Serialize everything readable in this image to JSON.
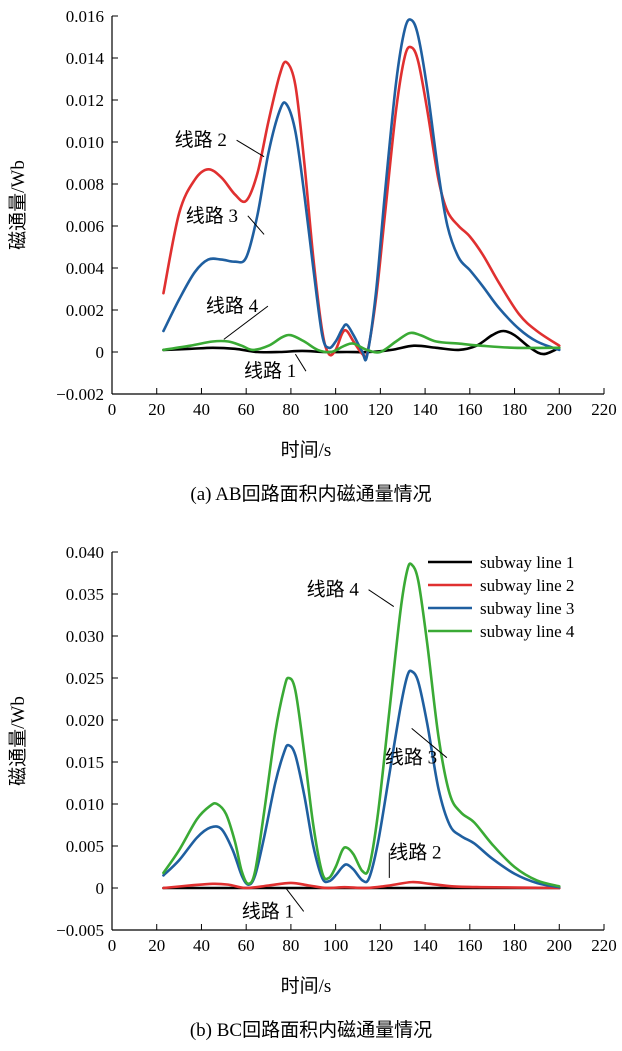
{
  "chart_data": [
    {
      "type": "line",
      "caption": "(a) AB回路面积内磁通量情况",
      "xlabel": "时间/s",
      "ylabel": "磁通量/Wb",
      "xlim": [
        0,
        220
      ],
      "ylim": [
        -0.002,
        0.016
      ],
      "xticks": [
        0,
        20,
        40,
        60,
        80,
        100,
        120,
        140,
        160,
        180,
        200,
        220
      ],
      "yticks": [
        -0.002,
        0,
        0.002,
        0.004,
        0.006,
        0.008,
        0.01,
        0.012,
        0.014,
        0.016
      ],
      "ytick_labels": [
        "−0.002",
        "0",
        "0.002",
        "0.004",
        "0.006",
        "0.008",
        "0.010",
        "0.012",
        "0.014",
        "0.016"
      ],
      "series": [
        {
          "name": "线路 1",
          "color": "#000000",
          "points": [
            [
              23,
              0.0001
            ],
            [
              35,
              0.00015
            ],
            [
              45,
              0.0002
            ],
            [
              55,
              0.00015
            ],
            [
              65,
              0.0
            ],
            [
              75,
              0.0
            ],
            [
              85,
              5e-05
            ],
            [
              95,
              0.0
            ],
            [
              105,
              0.0
            ],
            [
              115,
              0.0
            ],
            [
              125,
              0.0001
            ],
            [
              135,
              0.0003
            ],
            [
              145,
              0.0002
            ],
            [
              155,
              0.0001
            ],
            [
              163,
              0.0003
            ],
            [
              170,
              0.0008
            ],
            [
              175,
              0.001
            ],
            [
              180,
              0.0008
            ],
            [
              187,
              0.0002
            ],
            [
              193,
              -0.0001
            ],
            [
              200,
              0.0002
            ]
          ]
        },
        {
          "name": "线路 2",
          "color": "#e03030",
          "points": [
            [
              23,
              0.0028
            ],
            [
              30,
              0.0066
            ],
            [
              37,
              0.0082
            ],
            [
              43,
              0.0087
            ],
            [
              49,
              0.0083
            ],
            [
              55,
              0.0075
            ],
            [
              60,
              0.0072
            ],
            [
              65,
              0.0085
            ],
            [
              70,
              0.011
            ],
            [
              75,
              0.0132
            ],
            [
              78,
              0.0138
            ],
            [
              82,
              0.0127
            ],
            [
              86,
              0.009
            ],
            [
              90,
              0.0045
            ],
            [
              94,
              0.001
            ],
            [
              97,
              -0.0001
            ],
            [
              100,
              0.0001
            ],
            [
              103,
              0.0009
            ],
            [
              105,
              0.001
            ],
            [
              108,
              0.0005
            ],
            [
              112,
              -0.0001
            ],
            [
              114,
              -0.0001
            ],
            [
              118,
              0.0025
            ],
            [
              122,
              0.0065
            ],
            [
              127,
              0.0115
            ],
            [
              131,
              0.0141
            ],
            [
              134,
              0.0145
            ],
            [
              137,
              0.0138
            ],
            [
              141,
              0.0115
            ],
            [
              146,
              0.0082
            ],
            [
              150,
              0.0067
            ],
            [
              155,
              0.006
            ],
            [
              160,
              0.0055
            ],
            [
              166,
              0.0046
            ],
            [
              173,
              0.0033
            ],
            [
              182,
              0.0018
            ],
            [
              190,
              0.001
            ],
            [
              200,
              0.0003
            ]
          ]
        },
        {
          "name": "线路 3",
          "color": "#1f5fa0",
          "points": [
            [
              23,
              0.001
            ],
            [
              30,
              0.0025
            ],
            [
              37,
              0.0038
            ],
            [
              43,
              0.0044
            ],
            [
              49,
              0.0044
            ],
            [
              55,
              0.0043
            ],
            [
              60,
              0.0045
            ],
            [
              65,
              0.0065
            ],
            [
              70,
              0.0095
            ],
            [
              75,
              0.0115
            ],
            [
              78,
              0.0118
            ],
            [
              82,
              0.0105
            ],
            [
              86,
              0.0075
            ],
            [
              90,
              0.004
            ],
            [
              94,
              0.0008
            ],
            [
              97,
              0.0002
            ],
            [
              100,
              0.0005
            ],
            [
              103,
              0.0011
            ],
            [
              105,
              0.0013
            ],
            [
              108,
              0.0008
            ],
            [
              112,
              0.0
            ],
            [
              114,
              -0.0002
            ],
            [
              118,
              0.0028
            ],
            [
              122,
              0.0075
            ],
            [
              127,
              0.0128
            ],
            [
              131,
              0.0154
            ],
            [
              134,
              0.0158
            ],
            [
              137,
              0.015
            ],
            [
              141,
              0.0125
            ],
            [
              146,
              0.0085
            ],
            [
              150,
              0.006
            ],
            [
              155,
              0.0045
            ],
            [
              160,
              0.0039
            ],
            [
              166,
              0.0031
            ],
            [
              173,
              0.0021
            ],
            [
              182,
              0.0011
            ],
            [
              190,
              0.0005
            ],
            [
              200,
              0.0001
            ]
          ]
        },
        {
          "name": "线路 4",
          "color": "#3aaa35",
          "points": [
            [
              23,
              0.0001
            ],
            [
              35,
              0.0003
            ],
            [
              45,
              0.0005
            ],
            [
              52,
              0.0005
            ],
            [
              58,
              0.0003
            ],
            [
              63,
              0.0001
            ],
            [
              70,
              0.0003
            ],
            [
              76,
              0.0007
            ],
            [
              80,
              0.0008
            ],
            [
              86,
              0.0005
            ],
            [
              92,
              0.0001
            ],
            [
              98,
              0.0
            ],
            [
              104,
              0.0003
            ],
            [
              108,
              0.0004
            ],
            [
              114,
              0.0001
            ],
            [
              120,
              0.0
            ],
            [
              127,
              0.0005
            ],
            [
              133,
              0.0009
            ],
            [
              138,
              0.0008
            ],
            [
              145,
              0.0005
            ],
            [
              155,
              0.0004
            ],
            [
              165,
              0.0003
            ],
            [
              180,
              0.0002
            ],
            [
              200,
              0.0002
            ]
          ]
        }
      ],
      "annotations": [
        {
          "text": "线路 2",
          "x": 28,
          "y": 0.0098,
          "tx": 68,
          "ty": 0.0093,
          "series": "线路 2"
        },
        {
          "text": "线路 3",
          "x": 33,
          "y": 0.0062,
          "tx": 68,
          "ty": 0.0056,
          "series": "线路 3"
        },
        {
          "text": "线路 4",
          "x": 42,
          "y": 0.0019,
          "tx": 50,
          "ty": 0.0006,
          "series": "线路 4"
        },
        {
          "text": "线路 1",
          "x": 59,
          "y": -0.0012,
          "tx": 82,
          "ty": -0.0001,
          "series": "线路 1"
        }
      ]
    },
    {
      "type": "line",
      "caption": "(b) BC回路面积内磁通量情况",
      "xlabel": "时间/s",
      "ylabel": "磁通量/Wb",
      "xlim": [
        0,
        220
      ],
      "ylim": [
        -0.005,
        0.04
      ],
      "xticks": [
        0,
        20,
        40,
        60,
        80,
        100,
        120,
        140,
        160,
        180,
        200,
        220
      ],
      "yticks": [
        -0.005,
        0,
        0.005,
        0.01,
        0.015,
        0.02,
        0.025,
        0.03,
        0.035,
        0.04
      ],
      "ytick_labels": [
        "−0.005",
        "0",
        "0.005",
        "0.010",
        "0.015",
        "0.020",
        "0.025",
        "0.030",
        "0.035",
        "0.040"
      ],
      "legend": {
        "position": "top-right",
        "entries": [
          "subway line 1",
          "subway line 2",
          "subway line 3",
          "subway line 4"
        ]
      },
      "series": [
        {
          "name": "subway line 1",
          "color": "#000000",
          "points": [
            [
              23,
              0.0
            ],
            [
              60,
              0.0
            ],
            [
              100,
              0.0
            ],
            [
              140,
              0.0
            ],
            [
              200,
              0.0
            ]
          ]
        },
        {
          "name": "subway line 2",
          "color": "#e03030",
          "points": [
            [
              23,
              0.0
            ],
            [
              35,
              0.0003
            ],
            [
              45,
              0.0005
            ],
            [
              52,
              0.0004
            ],
            [
              60,
              0.0
            ],
            [
              70,
              0.0003
            ],
            [
              80,
              0.0006
            ],
            [
              88,
              0.0003
            ],
            [
              96,
              0.0
            ],
            [
              104,
              0.0001
            ],
            [
              114,
              0.0
            ],
            [
              124,
              0.0003
            ],
            [
              134,
              0.0007
            ],
            [
              142,
              0.0005
            ],
            [
              152,
              0.0002
            ],
            [
              165,
              0.0001
            ],
            [
              200,
              0.0
            ]
          ]
        },
        {
          "name": "subway line 3",
          "color": "#1f5fa0",
          "points": [
            [
              23,
              0.0015
            ],
            [
              30,
              0.0033
            ],
            [
              38,
              0.006
            ],
            [
              44,
              0.0072
            ],
            [
              49,
              0.007
            ],
            [
              54,
              0.0045
            ],
            [
              58,
              0.0015
            ],
            [
              61,
              0.0004
            ],
            [
              64,
              0.0015
            ],
            [
              68,
              0.006
            ],
            [
              73,
              0.0125
            ],
            [
              77,
              0.0162
            ],
            [
              79,
              0.017
            ],
            [
              82,
              0.0158
            ],
            [
              86,
              0.011
            ],
            [
              90,
              0.005
            ],
            [
              94,
              0.0012
            ],
            [
              97,
              0.0008
            ],
            [
              100,
              0.0015
            ],
            [
              103,
              0.0025
            ],
            [
              105,
              0.0028
            ],
            [
              108,
              0.0022
            ],
            [
              112,
              0.0009
            ],
            [
              115,
              0.0012
            ],
            [
              119,
              0.0055
            ],
            [
              124,
              0.0135
            ],
            [
              129,
              0.0215
            ],
            [
              132,
              0.0252
            ],
            [
              134,
              0.0258
            ],
            [
              137,
              0.0245
            ],
            [
              141,
              0.0195
            ],
            [
              146,
              0.0118
            ],
            [
              151,
              0.0075
            ],
            [
              156,
              0.0062
            ],
            [
              162,
              0.0053
            ],
            [
              170,
              0.0035
            ],
            [
              180,
              0.0017
            ],
            [
              190,
              0.0006
            ],
            [
              200,
              0.0001
            ]
          ]
        },
        {
          "name": "subway line 4",
          "color": "#3aaa35",
          "points": [
            [
              23,
              0.0018
            ],
            [
              30,
              0.0045
            ],
            [
              38,
              0.0082
            ],
            [
              44,
              0.0098
            ],
            [
              47,
              0.01
            ],
            [
              51,
              0.0088
            ],
            [
              55,
              0.0055
            ],
            [
              58,
              0.002
            ],
            [
              61,
              0.0005
            ],
            [
              64,
              0.002
            ],
            [
              68,
              0.009
            ],
            [
              73,
              0.0185
            ],
            [
              77,
              0.0238
            ],
            [
              79,
              0.025
            ],
            [
              82,
              0.0235
            ],
            [
              86,
              0.016
            ],
            [
              90,
              0.0075
            ],
            [
              94,
              0.0018
            ],
            [
              97,
              0.0012
            ],
            [
              100,
              0.0025
            ],
            [
              103,
              0.0045
            ],
            [
              105,
              0.0048
            ],
            [
              108,
              0.004
            ],
            [
              112,
              0.002
            ],
            [
              115,
              0.0025
            ],
            [
              119,
              0.009
            ],
            [
              124,
              0.021
            ],
            [
              129,
              0.033
            ],
            [
              132,
              0.0378
            ],
            [
              134,
              0.0385
            ],
            [
              137,
              0.0365
            ],
            [
              141,
              0.029
            ],
            [
              146,
              0.018
            ],
            [
              151,
              0.0112
            ],
            [
              156,
              0.009
            ],
            [
              162,
              0.0078
            ],
            [
              170,
              0.0052
            ],
            [
              180,
              0.0025
            ],
            [
              190,
              0.0009
            ],
            [
              200,
              0.0002
            ]
          ]
        }
      ],
      "annotations": [
        {
          "text": "线路 4",
          "x": 87,
          "y": 0.0348,
          "tx": 126,
          "ty": 0.0335,
          "series": "subway line 4"
        },
        {
          "text": "线路 3",
          "x": 122,
          "y": 0.0148,
          "tx": 134,
          "ty": 0.019,
          "series": "subway line 3"
        },
        {
          "text": "线路 2",
          "x": 124,
          "y": 0.0035,
          "tx": 124,
          "ty": 0.0012,
          "series": "subway line 2"
        },
        {
          "text": "线路 1",
          "x": 58,
          "y": -0.0035,
          "tx": 78,
          "ty": -0.0001,
          "series": "subway line 1"
        }
      ]
    }
  ]
}
